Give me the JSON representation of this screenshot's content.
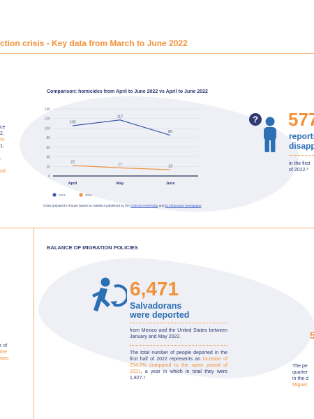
{
  "title": "ction crisis - Key data from March to June 2022",
  "chart_data": {
    "type": "line",
    "title": "Comparison: homicides from April to June 2022 vs April to June 2022",
    "categories": [
      "April",
      "May",
      "June"
    ],
    "series": [
      {
        "name": "2021",
        "values": [
          105,
          117,
          85
        ],
        "color": "#3b5aa8"
      },
      {
        "name": "2022",
        "values": [
          22,
          17,
          13
        ],
        "color": "#f2913a"
      }
    ],
    "ylim": [
      0,
      140
    ],
    "yticks": [
      0,
      20,
      40,
      60,
      80,
      100,
      120,
      140
    ],
    "grid": true,
    "legend": "bottom-left",
    "source_note": "Chart prepared in-house based on statistics published by the",
    "source_link_1": "National civil Police",
    "source_and": "and",
    "source_link_2": "El Informante Newspaper"
  },
  "left_fragments": [
    "ce",
    "2,",
    "%",
    "1,",
    "-",
    "nd"
  ],
  "left_fragments_bottom": [
    "r of",
    "the",
    "was"
  ],
  "disappearances": {
    "number": "577",
    "label_line1": "reports",
    "label_line2": "disapp",
    "desc_line1": "in the first",
    "desc_line2": "of 2022.³"
  },
  "section": {
    "heading": "BALANCE OF MIGRATION POLICIES"
  },
  "deported": {
    "number": "6,471",
    "label_line1": "Salvadorans",
    "label_line2": "were deported",
    "desc": "from Mexico and the United States between January and May 2022.",
    "para_part1": "The total number of people deported in the first half of 2022 represents an ",
    "para_highlight": "increase of 254.2% compared to the same period of 2021",
    "para_part2": ", a year in which in total they were 1,827.⁶"
  },
  "right_bottom": {
    "digit": "5",
    "line1": "The pe",
    "line2": "quarter",
    "line3": "in the d",
    "line4": "Miguel,"
  },
  "colors": {
    "accent": "#f2913a",
    "navy": "#2f3a73",
    "blue": "#2c6fb5",
    "map": "#eef0f5"
  },
  "icons": [
    "person-question-icon",
    "deported-person-icon"
  ]
}
